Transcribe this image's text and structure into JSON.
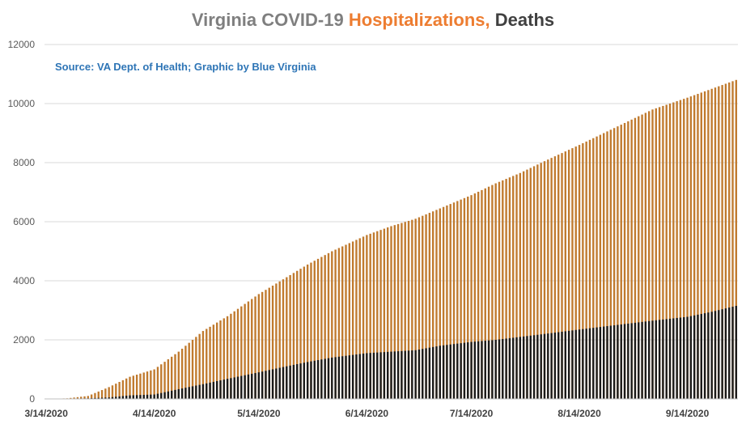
{
  "title": {
    "part1": "Virginia COVID-19 ",
    "part2": "Hospitalizations,",
    "part3": " Deaths"
  },
  "source": "Source: VA Dept. of Health; Graphic by Blue Virginia",
  "chart_data": {
    "type": "bar",
    "title": "Virginia COVID-19 Hospitalizations, Deaths",
    "ylim": [
      0,
      12000
    ],
    "y_ticks": [
      "0",
      "2000",
      "4000",
      "6000",
      "8000",
      "10000",
      "12000"
    ],
    "x_tick_labels": [
      "3/14/2020",
      "4/14/2020",
      "5/14/2020",
      "6/14/2020",
      "7/14/2020",
      "8/14/2020",
      "9/14/2020"
    ],
    "grid": true,
    "colors": {
      "hospitalizations": "#c07a2e",
      "deaths": "#1a1a1a",
      "grid": "#d9d9d9"
    },
    "keypoints": {
      "hospitalizations": [
        [
          "2020-03-14",
          0
        ],
        [
          "2020-03-20",
          20
        ],
        [
          "2020-03-26",
          100
        ],
        [
          "2020-04-01",
          400
        ],
        [
          "2020-04-07",
          750
        ],
        [
          "2020-04-14",
          1000
        ],
        [
          "2020-04-21",
          1600
        ],
        [
          "2020-04-28",
          2300
        ],
        [
          "2020-05-05",
          2800
        ],
        [
          "2020-05-14",
          3550
        ],
        [
          "2020-05-21",
          4050
        ],
        [
          "2020-05-28",
          4550
        ],
        [
          "2020-06-04",
          5000
        ],
        [
          "2020-06-14",
          5550
        ],
        [
          "2020-06-21",
          5850
        ],
        [
          "2020-06-28",
          6100
        ],
        [
          "2020-07-05",
          6450
        ],
        [
          "2020-07-14",
          6900
        ],
        [
          "2020-07-21",
          7300
        ],
        [
          "2020-07-28",
          7650
        ],
        [
          "2020-08-04",
          8050
        ],
        [
          "2020-08-14",
          8600
        ],
        [
          "2020-08-21",
          9000
        ],
        [
          "2020-08-28",
          9400
        ],
        [
          "2020-09-04",
          9800
        ],
        [
          "2020-09-14",
          10200
        ],
        [
          "2020-09-21",
          10500
        ],
        [
          "2020-09-28",
          10800
        ]
      ],
      "deaths": [
        [
          "2020-03-14",
          0
        ],
        [
          "2020-03-26",
          20
        ],
        [
          "2020-04-01",
          50
        ],
        [
          "2020-04-07",
          120
        ],
        [
          "2020-04-14",
          150
        ],
        [
          "2020-04-21",
          330
        ],
        [
          "2020-04-28",
          500
        ],
        [
          "2020-05-05",
          680
        ],
        [
          "2020-05-14",
          900
        ],
        [
          "2020-05-21",
          1080
        ],
        [
          "2020-05-28",
          1250
        ],
        [
          "2020-06-04",
          1400
        ],
        [
          "2020-06-14",
          1550
        ],
        [
          "2020-06-21",
          1600
        ],
        [
          "2020-06-28",
          1650
        ],
        [
          "2020-07-05",
          1800
        ],
        [
          "2020-07-14",
          1930
        ],
        [
          "2020-07-21",
          2000
        ],
        [
          "2020-07-28",
          2100
        ],
        [
          "2020-08-04",
          2200
        ],
        [
          "2020-08-14",
          2350
        ],
        [
          "2020-08-21",
          2450
        ],
        [
          "2020-08-28",
          2550
        ],
        [
          "2020-09-04",
          2650
        ],
        [
          "2020-09-14",
          2780
        ],
        [
          "2020-09-21",
          2950
        ],
        [
          "2020-09-28",
          3150
        ]
      ]
    }
  }
}
